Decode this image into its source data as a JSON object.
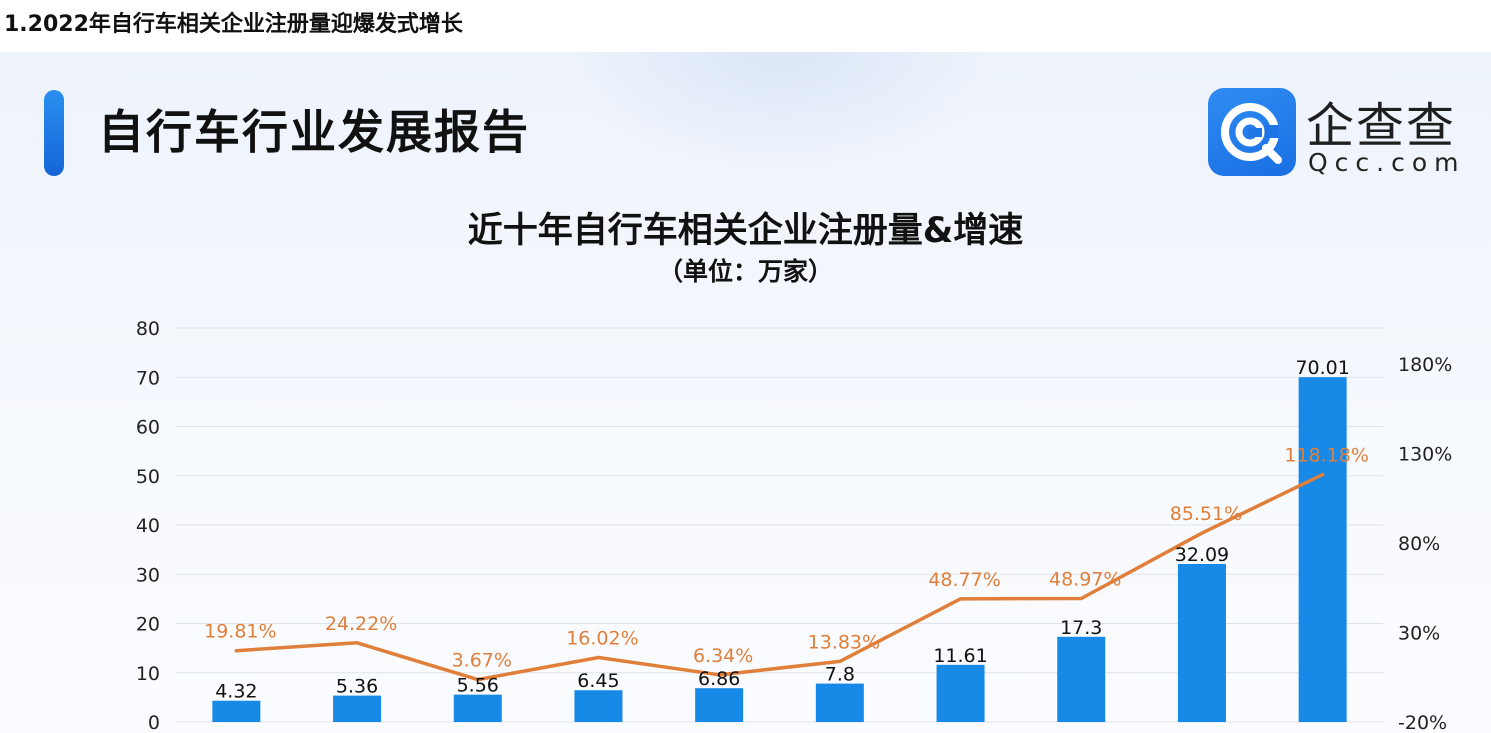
{
  "caption": "1.2022年自行车相关企业注册量迎爆发式增长",
  "report_title": "自行车行业发展报告",
  "logo": {
    "name_cn": "企查查",
    "name_en": "Qcc.com"
  },
  "colors": {
    "bar": "#1789e6",
    "line": "#e07f3a",
    "grid": "#dde3ec",
    "accent": "#1a7be8"
  },
  "chart_data": {
    "type": "bar",
    "title": "近十年自行车相关企业注册量&增速",
    "subtitle": "（单位：万家）",
    "categories": [
      "",
      "",
      "",
      "",
      "",
      "",
      "",
      "",
      "",
      ""
    ],
    "series": [
      {
        "type": "bar",
        "axis": "left",
        "values": [
          4.32,
          5.36,
          5.56,
          6.45,
          6.86,
          7.8,
          11.61,
          17.3,
          32.09,
          70.01
        ],
        "labels": [
          "4.32",
          "5.36",
          "5.56",
          "6.45",
          "6.86",
          "7.8",
          "11.61",
          "17.3",
          "32.09",
          "70.01"
        ]
      },
      {
        "type": "line",
        "axis": "right",
        "values": [
          19.81,
          24.22,
          3.67,
          16.02,
          6.34,
          13.83,
          48.77,
          48.97,
          85.51,
          118.18
        ],
        "labels": [
          "19.81%",
          "24.22%",
          "3.67%",
          "16.02%",
          "6.34%",
          "13.83%",
          "48.77%",
          "48.97%",
          "85.51%",
          "118.18%"
        ]
      }
    ],
    "ylim": [
      0,
      80
    ],
    "y_ticks": [
      "0",
      "10",
      "20",
      "30",
      "40",
      "50",
      "60",
      "70",
      "80"
    ],
    "y2lim": [
      -20,
      200
    ],
    "y2_ticks": [
      {
        "value": -20,
        "label": "-20%"
      },
      {
        "value": 30,
        "label": "30%"
      },
      {
        "value": 80,
        "label": "80%"
      },
      {
        "value": 130,
        "label": "130%"
      },
      {
        "value": 180,
        "label": "180%"
      }
    ],
    "grid": true,
    "legend": "none"
  }
}
